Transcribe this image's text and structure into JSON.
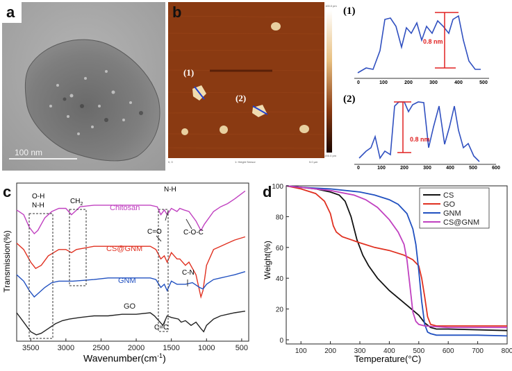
{
  "panels": {
    "a": {
      "label": "a",
      "scalebar": "100 nm"
    },
    "b": {
      "label": "b",
      "marker1": "(1)",
      "marker2": "(2)",
      "axis_left": "0, 0",
      "axis_center": "1: Height Sensor",
      "axis_right": "5.0 µm",
      "colorbar_top": "100.0 pm",
      "colorbar_bottom": "-200.0 pm"
    },
    "profiles": {
      "p1": {
        "label": "(1)",
        "annotation": "0.8 nm",
        "xticks": [
          "0",
          "100",
          "200",
          "300",
          "400",
          "500"
        ]
      },
      "p2": {
        "label": "(2)",
        "annotation": "0.8 nm",
        "xticks": [
          "0",
          "100",
          "200",
          "300",
          "400",
          "500",
          "600"
        ]
      }
    },
    "c": {
      "label": "c",
      "annotations": {
        "oh": "O-H",
        "nh1": "N-H",
        "ch2": "CH",
        "ch2_sub": "2",
        "nh2": "N-H",
        "co": "C=O",
        "coc": "C-O-C",
        "cn": "C-N",
        "cc": "C=C"
      }
    },
    "d": {
      "label": "d"
    }
  },
  "chart_data": [
    {
      "type": "line",
      "panel": "c",
      "xlabel": "Wavenumber(cm",
      "xlabel_sup": "-1",
      "xlabel_end": ")",
      "ylabel": "Transmission(%)",
      "xlim": [
        3700,
        400
      ],
      "xticks": [
        3500,
        3000,
        2500,
        2000,
        1500,
        1000,
        500
      ],
      "series": [
        {
          "name": "Chitosan",
          "color": "#c040c0",
          "x": [
            3700,
            3600,
            3520,
            3450,
            3400,
            3300,
            3200,
            3100,
            3000,
            2920,
            2870,
            2800,
            2600,
            2400,
            2200,
            2000,
            1800,
            1700,
            1650,
            1600,
            1560,
            1500,
            1420,
            1380,
            1320,
            1250,
            1150,
            1080,
            1030,
            900,
            800,
            700,
            600,
            450
          ],
          "y": [
            83,
            80,
            72,
            68,
            70,
            78,
            82,
            84,
            84,
            80,
            82,
            85,
            86,
            86,
            86,
            86,
            86,
            85,
            80,
            83,
            80,
            84,
            82,
            84,
            83,
            82,
            76,
            70,
            74,
            82,
            85,
            87,
            90,
            95
          ]
        },
        {
          "name": "CS@GNM",
          "color": "#e03020",
          "x": [
            3700,
            3600,
            3500,
            3430,
            3350,
            3250,
            3100,
            3000,
            2920,
            2850,
            2600,
            2400,
            2200,
            2000,
            1800,
            1720,
            1650,
            1600,
            1560,
            1500,
            1420,
            1380,
            1300,
            1250,
            1150,
            1080,
            1050,
            1000,
            900,
            800,
            700,
            600,
            450
          ],
          "y": [
            62,
            58,
            50,
            46,
            48,
            54,
            58,
            58,
            56,
            58,
            60,
            60,
            60,
            60,
            60,
            58,
            52,
            54,
            50,
            56,
            52,
            52,
            48,
            50,
            42,
            28,
            32,
            48,
            58,
            60,
            62,
            64,
            66
          ]
        },
        {
          "name": "GNM",
          "color": "#2050c0",
          "x": [
            3700,
            3600,
            3520,
            3450,
            3400,
            3300,
            3200,
            3100,
            3000,
            2900,
            2600,
            2400,
            2200,
            2000,
            1800,
            1720,
            1650,
            1600,
            1560,
            1500,
            1420,
            1380,
            1300,
            1200,
            1100,
            1050,
            1000,
            900,
            800,
            700,
            600,
            450
          ],
          "y": [
            42,
            38,
            32,
            28,
            30,
            34,
            37,
            38,
            38,
            38,
            39,
            40,
            40,
            40,
            40,
            39,
            34,
            36,
            32,
            38,
            36,
            36,
            36,
            37,
            34,
            33,
            36,
            39,
            40,
            41,
            42,
            44
          ]
        },
        {
          "name": "GO",
          "color": "#222222",
          "x": [
            3700,
            3600,
            3500,
            3420,
            3350,
            3250,
            3150,
            3050,
            2950,
            2800,
            2600,
            2400,
            2200,
            2000,
            1800,
            1740,
            1700,
            1620,
            1560,
            1500,
            1400,
            1360,
            1300,
            1220,
            1150,
            1080,
            1040,
            1000,
            900,
            800,
            700,
            600,
            450
          ],
          "y": [
            18,
            12,
            6,
            4,
            5,
            8,
            11,
            13,
            14,
            15,
            16,
            16,
            17,
            17,
            18,
            16,
            14,
            10,
            16,
            15,
            14,
            12,
            13,
            10,
            12,
            8,
            6,
            10,
            14,
            16,
            17,
            18,
            19
          ]
        }
      ]
    },
    {
      "type": "line",
      "panel": "d",
      "xlabel": "Temperature(",
      "xlabel_unit": "°C",
      "xlabel_end": ")",
      "ylabel": "Weight(%)",
      "xlim": [
        50,
        800
      ],
      "ylim": [
        0,
        100
      ],
      "xticks": [
        100,
        200,
        300,
        400,
        500,
        600,
        700,
        800
      ],
      "yticks": [
        0,
        20,
        40,
        60,
        80,
        100
      ],
      "legend": "top-right",
      "series": [
        {
          "name": "CS",
          "color": "#111111",
          "x": [
            50,
            100,
            150,
            200,
            230,
            250,
            270,
            290,
            310,
            330,
            360,
            400,
            450,
            500,
            520,
            540,
            560,
            600,
            700,
            800
          ],
          "y": [
            100,
            99,
            98,
            96,
            94,
            90,
            80,
            65,
            55,
            48,
            40,
            32,
            24,
            16,
            11,
            8,
            7,
            7,
            6.5,
            6
          ]
        },
        {
          "name": "GO",
          "color": "#e03020",
          "x": [
            50,
            100,
            150,
            180,
            200,
            210,
            220,
            240,
            270,
            300,
            350,
            400,
            450,
            480,
            500,
            510,
            520,
            530,
            540,
            560,
            600,
            700,
            800
          ],
          "y": [
            100,
            98,
            95,
            90,
            82,
            74,
            70,
            67,
            65,
            63,
            60,
            58,
            55,
            52,
            48,
            40,
            28,
            15,
            10,
            9,
            9,
            9,
            9
          ]
        },
        {
          "name": "GNM",
          "color": "#2050c0",
          "x": [
            50,
            100,
            200,
            300,
            350,
            400,
            430,
            460,
            480,
            490,
            500,
            510,
            520,
            530,
            540,
            560,
            600,
            700,
            800
          ],
          "y": [
            100,
            99,
            98,
            96,
            94,
            91,
            88,
            82,
            72,
            62,
            45,
            25,
            10,
            5,
            4,
            3,
            3,
            3,
            2.5
          ]
        },
        {
          "name": "CS@GNM",
          "color": "#c040c0",
          "x": [
            50,
            100,
            200,
            280,
            320,
            360,
            400,
            430,
            450,
            460,
            470,
            480,
            490,
            500,
            520,
            560,
            600,
            700,
            800
          ],
          "y": [
            100,
            99,
            97,
            94,
            91,
            86,
            78,
            70,
            62,
            52,
            35,
            18,
            12,
            10,
            9,
            8.5,
            8,
            8,
            8
          ]
        }
      ]
    }
  ]
}
